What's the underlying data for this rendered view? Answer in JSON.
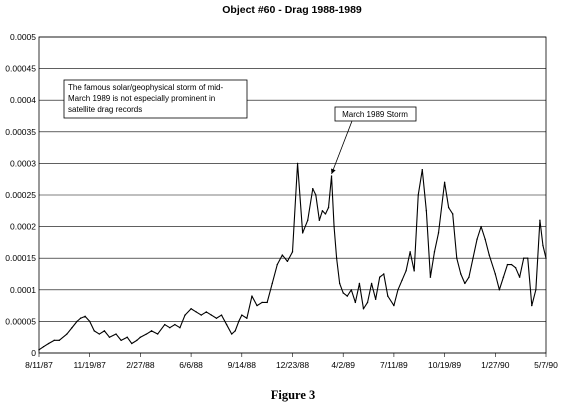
{
  "chart_data": {
    "type": "line",
    "title": "Object #60 - Drag 1988-1989",
    "caption": "Figure 3",
    "xlabel": "",
    "ylabel": "",
    "ylim": [
      0,
      0.0005
    ],
    "y_ticks": [
      "0",
      "0.00005",
      "0.0001",
      "0.00015",
      "0.0002",
      "0.00025",
      "0.0003",
      "0.00035",
      "0.0004",
      "0.00045",
      "0.0005"
    ],
    "y_tick_values": [
      0,
      5e-05,
      0.0001,
      0.00015,
      0.0002,
      0.00025,
      0.0003,
      0.00035,
      0.0004,
      0.00045,
      0.0005
    ],
    "xlim": [
      "1987-08-11",
      "1990-05-07"
    ],
    "x_ticks": [
      "8/11/87",
      "11/19/87",
      "2/27/88",
      "6/6/88",
      "9/14/88",
      "12/23/88",
      "4/2/89",
      "7/11/89",
      "10/19/89",
      "1/27/90",
      "5/7/90"
    ],
    "x_tick_dates": [
      "1987-08-11",
      "1987-11-19",
      "1988-02-27",
      "1988-06-06",
      "1988-09-14",
      "1988-12-23",
      "1989-04-02",
      "1989-07-11",
      "1989-10-19",
      "1990-01-27",
      "1990-05-07"
    ],
    "grid": "horizontal",
    "legend": "none",
    "line_color": "#000000",
    "series": [
      {
        "x": [
          "1987-08-11",
          "1987-08-20",
          "1987-08-30",
          "1987-09-10",
          "1987-09-20",
          "1987-10-05",
          "1987-10-15",
          "1987-10-25",
          "1987-11-01",
          "1987-11-10",
          "1987-11-19",
          "1987-11-28",
          "1987-12-08",
          "1987-12-18",
          "1987-12-28",
          "1988-01-10",
          "1988-01-20",
          "1988-02-01",
          "1988-02-10",
          "1988-02-20",
          "1988-02-27",
          "1988-03-10",
          "1988-03-20",
          "1988-04-01",
          "1988-04-15",
          "1988-04-25",
          "1988-05-05",
          "1988-05-15",
          "1988-05-25",
          "1988-06-06",
          "1988-06-16",
          "1988-06-26",
          "1988-07-06",
          "1988-07-16",
          "1988-07-26",
          "1988-08-05",
          "1988-08-15",
          "1988-08-25",
          "1988-09-01",
          "1988-09-08",
          "1988-09-14",
          "1988-09-24",
          "1988-10-04",
          "1988-10-14",
          "1988-10-24",
          "1988-11-03",
          "1988-11-13",
          "1988-11-23",
          "1988-12-03",
          "1988-12-13",
          "1988-12-23",
          "1989-01-02",
          "1989-01-12",
          "1989-01-22",
          "1989-02-01",
          "1989-02-07",
          "1989-02-14",
          "1989-02-20",
          "1989-02-26",
          "1989-03-04",
          "1989-03-10",
          "1989-03-15",
          "1989-03-20",
          "1989-03-26",
          "1989-04-02",
          "1989-04-10",
          "1989-04-18",
          "1989-04-26",
          "1989-05-04",
          "1989-05-12",
          "1989-05-20",
          "1989-05-28",
          "1989-06-05",
          "1989-06-13",
          "1989-06-21",
          "1989-06-29",
          "1989-07-11",
          "1989-07-19",
          "1989-07-27",
          "1989-08-04",
          "1989-08-12",
          "1989-08-20",
          "1989-08-28",
          "1989-09-05",
          "1989-09-13",
          "1989-09-21",
          "1989-09-29",
          "1989-10-07",
          "1989-10-19",
          "1989-10-27",
          "1989-11-04",
          "1989-11-12",
          "1989-11-20",
          "1989-11-28",
          "1989-12-06",
          "1989-12-14",
          "1989-12-22",
          "1989-12-30",
          "1990-01-07",
          "1990-01-15",
          "1990-01-27",
          "1990-02-04",
          "1990-02-12",
          "1990-02-20",
          "1990-02-28",
          "1990-03-08",
          "1990-03-16",
          "1990-03-24",
          "1990-04-01",
          "1990-04-09",
          "1990-04-17",
          "1990-04-25",
          "1990-05-01",
          "1990-05-07"
        ],
        "y": [
          5e-06,
          1e-05,
          1.5e-05,
          2e-05,
          2e-05,
          3e-05,
          4e-05,
          5e-05,
          5.5e-05,
          5.8e-05,
          5e-05,
          3.5e-05,
          3e-05,
          3.5e-05,
          2.5e-05,
          3e-05,
          2e-05,
          2.5e-05,
          1.5e-05,
          2e-05,
          2.5e-05,
          3e-05,
          3.5e-05,
          3e-05,
          4.5e-05,
          4e-05,
          4.5e-05,
          4e-05,
          6e-05,
          7e-05,
          6.5e-05,
          6e-05,
          6.5e-05,
          6e-05,
          5.5e-05,
          6e-05,
          4.5e-05,
          3e-05,
          3.5e-05,
          5e-05,
          6e-05,
          5.5e-05,
          9e-05,
          7.5e-05,
          8e-05,
          8e-05,
          0.00011,
          0.00014,
          0.000155,
          0.000145,
          0.00016,
          0.0003,
          0.00019,
          0.00021,
          0.00026,
          0.00025,
          0.00021,
          0.000225,
          0.00022,
          0.00023,
          0.00028,
          0.0002,
          0.00015,
          0.00011,
          9.5e-05,
          9e-05,
          0.0001,
          8e-05,
          0.00011,
          7e-05,
          8e-05,
          0.00011,
          8.5e-05,
          0.00012,
          0.000125,
          9e-05,
          7.5e-05,
          0.0001,
          0.000115,
          0.00013,
          0.00016,
          0.00013,
          0.00025,
          0.00029,
          0.000225,
          0.00012,
          0.00016,
          0.00019,
          0.00027,
          0.00023,
          0.00022,
          0.00015,
          0.000125,
          0.00011,
          0.00012,
          0.00015,
          0.00018,
          0.0002,
          0.00018,
          0.000155,
          0.000125,
          0.0001,
          0.00012,
          0.00014,
          0.00014,
          0.000135,
          0.00012,
          0.00015,
          0.00015,
          7.5e-05,
          0.0001,
          0.00021,
          0.00017,
          0.00015
        ]
      }
    ],
    "annotations": [
      {
        "type": "box",
        "lines": [
          "The famous solar/geophysical storm of mid-",
          "March 1989 is not especially prominent in",
          "satellite drag records"
        ]
      },
      {
        "type": "callout",
        "text": "March 1989 Storm",
        "target_x": "1989-03-10",
        "target_y": 0.00028
      }
    ]
  }
}
